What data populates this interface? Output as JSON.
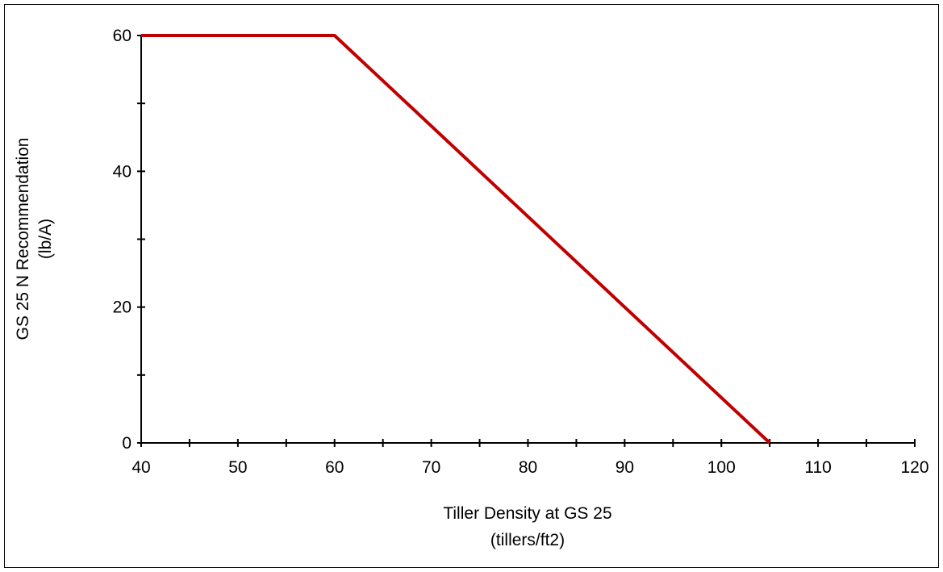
{
  "chart_data": {
    "type": "line",
    "title": "",
    "xlabel": [
      "Tiller Density at GS 25",
      "(tillers/ft2)"
    ],
    "ylabel": [
      "GS 25 N Recommendation",
      "(lb/A)"
    ],
    "xlim": [
      40,
      120
    ],
    "ylim": [
      0,
      60
    ],
    "x_ticks": [
      40,
      50,
      60,
      70,
      80,
      90,
      100,
      110,
      120
    ],
    "y_ticks": [
      0,
      20,
      40,
      60
    ],
    "grid": false,
    "legend": "none",
    "series": [
      {
        "color": "#c00000",
        "points": [
          {
            "x": 40,
            "y": 60
          },
          {
            "x": 60,
            "y": 60
          },
          {
            "x": 105,
            "y": 0
          }
        ]
      }
    ]
  }
}
